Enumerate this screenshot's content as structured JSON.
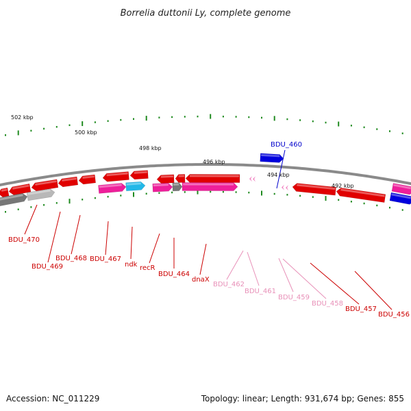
{
  "title": "Borrelia duttonii Ly, complete genome",
  "footer": {
    "accession": "Accession: NC_011229",
    "summary": "Topology: linear; Length: 931,674 bp; Genes: 855"
  },
  "colors": {
    "backbone": "#8a8a8a",
    "tick": "#1f8a1f",
    "gene_red": "#e00000",
    "gene_pink": "#ee1f9a",
    "gene_cyan": "#22b8e8",
    "gene_blue": "#0000dd",
    "gene_gray": "#777777",
    "gene_lightgray": "#b8b8b8",
    "gene_lightpink": "#f080c0",
    "label_red": "#cc0000",
    "label_pink": "#e890b8",
    "label_blue": "#0000cc"
  },
  "scale_labels": [
    "502 kbp",
    "500 kbp",
    "498 kbp",
    "496 kbp",
    "494 kbp",
    "492 kbp"
  ],
  "gene_labels": [
    {
      "text": "BDU_470",
      "color": "label_red"
    },
    {
      "text": "BDU_469",
      "color": "label_red"
    },
    {
      "text": "BDU_468",
      "color": "label_red"
    },
    {
      "text": "BDU_467",
      "color": "label_red"
    },
    {
      "text": "ndk",
      "color": "label_red"
    },
    {
      "text": "recR",
      "color": "label_red"
    },
    {
      "text": "BDU_464",
      "color": "label_red"
    },
    {
      "text": "dnaX",
      "color": "label_red"
    },
    {
      "text": "BDU_462",
      "color": "label_pink"
    },
    {
      "text": "BDU_461",
      "color": "label_pink"
    },
    {
      "text": "BDU_459",
      "color": "label_pink"
    },
    {
      "text": "BDU_458",
      "color": "label_pink"
    },
    {
      "text": "BDU_457",
      "color": "label_red"
    },
    {
      "text": "BDU_456",
      "color": "label_red"
    },
    {
      "text": "BDU_460",
      "color": "label_blue"
    }
  ]
}
